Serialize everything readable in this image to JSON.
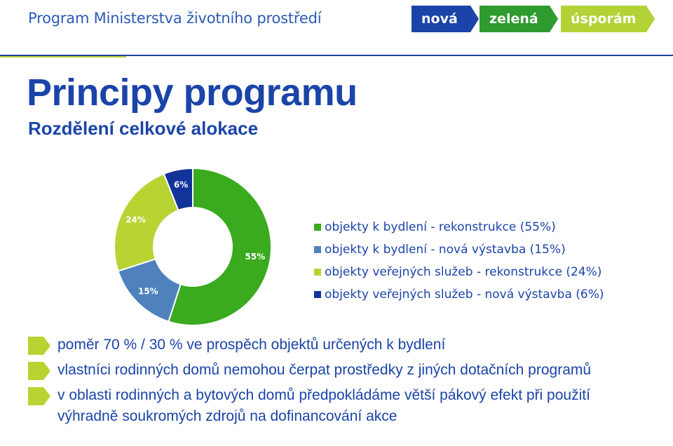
{
  "header": {
    "title": "Program Ministerstva životního prostředí",
    "logo_words": [
      "nová",
      "zelená",
      "úsporám"
    ],
    "logo_colors": [
      "#1a44a8",
      "#2e9b2e",
      "#b2d235"
    ]
  },
  "page": {
    "title": "Principy programu",
    "subtitle": "Rozdělení celkové alokace"
  },
  "chart_data": {
    "type": "pie",
    "donut": true,
    "slices": [
      {
        "label": "objekty k bydlení - rekonstrukce (55%)",
        "value": 55,
        "data_label": "55%",
        "color": "#3aaa1e"
      },
      {
        "label": "objekty k bydlení - nová výstavba (15%)",
        "value": 15,
        "data_label": "15%",
        "color": "#4f81bd"
      },
      {
        "label": "objekty veřejných služeb - rekonstrukce (24%)",
        "value": 24,
        "data_label": "24%",
        "color": "#b8d432"
      },
      {
        "label": "objekty veřejných služeb - nová výstavba (6%)",
        "value": 6,
        "data_label": "6%",
        "color": "#12339a"
      }
    ],
    "legend_position": "right"
  },
  "bullets": [
    {
      "text": "poměr 70 % / 30 % ve prospěch objektů určených k bydlení"
    },
    {
      "text": "vlastníci rodinných domů nemohou čerpat prostředky z jiných dotačních programů"
    },
    {
      "text": "v oblasti rodinných a bytových domů předpokládáme větší pákový efekt při použití výhradně soukromých zdrojů na dofinancování akce"
    }
  ],
  "bullet_color": "#b8d432",
  "text_color": "#1a44a8"
}
